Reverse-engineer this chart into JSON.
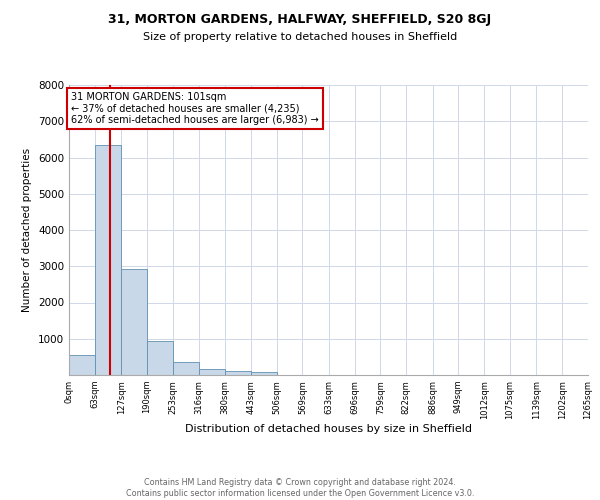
{
  "title1": "31, MORTON GARDENS, HALFWAY, SHEFFIELD, S20 8GJ",
  "title2": "Size of property relative to detached houses in Sheffield",
  "xlabel": "Distribution of detached houses by size in Sheffield",
  "ylabel": "Number of detached properties",
  "footer1": "Contains HM Land Registry data © Crown copyright and database right 2024.",
  "footer2": "Contains public sector information licensed under the Open Government Licence v3.0.",
  "annotation_title": "31 MORTON GARDENS: 101sqm",
  "annotation_line1": "← 37% of detached houses are smaller (4,235)",
  "annotation_line2": "62% of semi-detached houses are larger (6,983) →",
  "bin_edges": [
    0,
    63,
    127,
    190,
    253,
    316,
    380,
    443,
    506,
    569,
    633,
    696,
    759,
    822,
    886,
    949,
    1012,
    1075,
    1139,
    1202,
    1265
  ],
  "bar_heights": [
    550,
    6350,
    2920,
    950,
    360,
    160,
    110,
    70,
    0,
    0,
    0,
    0,
    0,
    0,
    0,
    0,
    0,
    0,
    0,
    0
  ],
  "bar_color": "#c8d8e8",
  "bar_edge_color": "#6090b0",
  "red_line_x": 101,
  "ylim_max": 8000,
  "yticks": [
    0,
    1000,
    2000,
    3000,
    4000,
    5000,
    6000,
    7000,
    8000
  ],
  "grid_color": "#d0d8e8",
  "red_line_color": "#cc0000",
  "annotation_border_color": "#cc0000"
}
